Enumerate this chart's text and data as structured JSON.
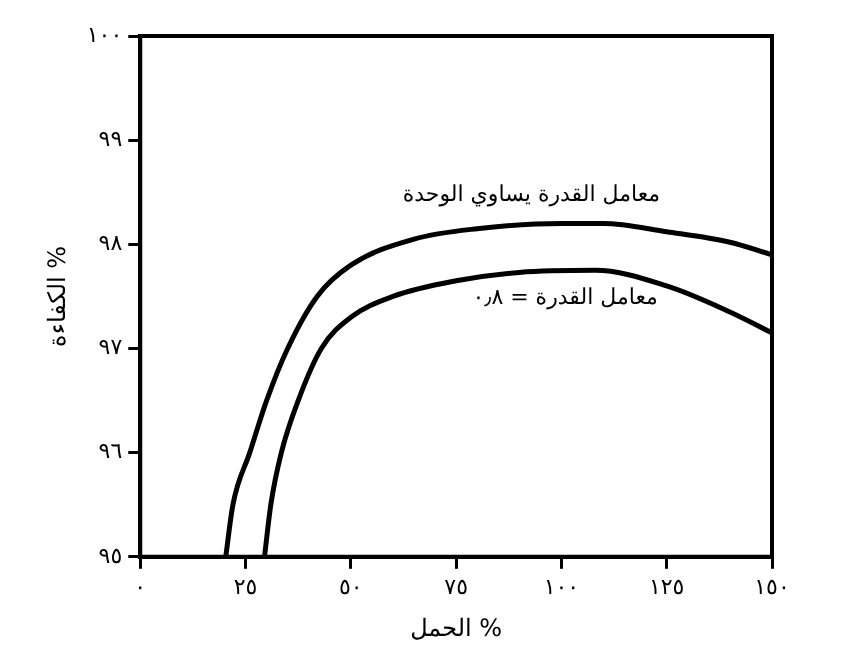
{
  "chart_data": {
    "type": "line",
    "xlabel": "الحمل %",
    "ylabel": "الكفاءة %",
    "xlim": [
      0,
      150
    ],
    "xticks": [
      {
        "value": 0,
        "label": "٠"
      },
      {
        "value": 25,
        "label": "٢٥"
      },
      {
        "value": 50,
        "label": "٥٠"
      },
      {
        "value": 75,
        "label": "٧٥"
      },
      {
        "value": 100,
        "label": "١٠٠"
      },
      {
        "value": 125,
        "label": "١٢٥"
      },
      {
        "value": 150,
        "label": "١٥٠"
      }
    ],
    "ylim": [
      95,
      100
    ],
    "yticks": [
      {
        "value": 95,
        "label": "٩٥"
      },
      {
        "value": 96,
        "label": "٩٦"
      },
      {
        "value": 97,
        "label": "٩٧"
      },
      {
        "value": 98,
        "label": "٩٨"
      },
      {
        "value": 99,
        "label": "٩٩"
      },
      {
        "value": 100,
        "label": "١٠٠"
      }
    ],
    "series": [
      {
        "color": "#000000",
        "x": [
          20.3,
          22,
          26,
          30,
          35,
          42,
          50,
          65,
          80,
          100,
          110,
          125,
          140,
          150
        ],
        "values": [
          95,
          95.5,
          96,
          96.5,
          97,
          97.5,
          97.8,
          98.05,
          98.15,
          98.2,
          98.2,
          98.12,
          98.02,
          97.9
        ]
      },
      {
        "color": "#000000",
        "x": [
          29.5,
          31,
          33.5,
          37.5,
          43,
          50,
          60,
          75,
          90,
          108,
          125,
          140,
          150
        ],
        "values": [
          95,
          95.5,
          96,
          96.5,
          97,
          97.3,
          97.5,
          97.65,
          97.73,
          97.75,
          97.6,
          97.35,
          97.15
        ]
      }
    ],
    "annotations": [
      "معامل القدرة يساوي الوحدة",
      "معامل القدرة = ٠٫٨"
    ],
    "grid": false,
    "legend": false,
    "marker": "none",
    "line_style": "solid"
  }
}
